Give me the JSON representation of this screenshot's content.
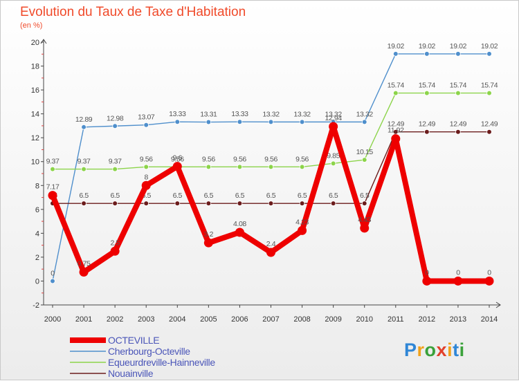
{
  "chart_data": {
    "type": "line",
    "title": "Evolution du Taux de Taxe d'Habitation",
    "subtitle": "(en %)",
    "x": [
      "2000",
      "2001",
      "2002",
      "2003",
      "2004",
      "2005",
      "2006",
      "2007",
      "2008",
      "2009",
      "2010",
      "2011",
      "2012",
      "2013",
      "2014"
    ],
    "ylim": [
      -2,
      20
    ],
    "yticks": [
      -2,
      0,
      2,
      4,
      6,
      8,
      10,
      12,
      14,
      16,
      18,
      20
    ],
    "grid": false,
    "legend": "bottom-left",
    "series": [
      {
        "name": "Cherbourg-Octeville",
        "color": "#4f8fcc",
        "values": [
          0,
          12.89,
          12.98,
          13.07,
          13.33,
          13.31,
          13.33,
          13.32,
          13.32,
          13.32,
          13.32,
          19.02,
          19.02,
          19.02,
          19.02
        ],
        "labels": [
          "0",
          "12.89",
          "12.98",
          "13.07",
          "13.33",
          "13.31",
          "13.33",
          "13.32",
          "13.32",
          "13.32",
          "13.32",
          "19.02",
          "19.02",
          "19.02",
          "19.02"
        ]
      },
      {
        "name": "Equeurdreville-Hainneville",
        "color": "#8cd44a",
        "values": [
          9.37,
          9.37,
          9.37,
          9.56,
          9.56,
          9.56,
          9.56,
          9.56,
          9.56,
          9.85,
          10.15,
          15.74,
          15.74,
          15.74,
          15.74
        ],
        "labels": [
          "9.37",
          "9.37",
          "9.37",
          "9.56",
          "9.56",
          "9.56",
          "9.56",
          "9.56",
          "9.56",
          "9.85",
          "10.15",
          "15.74",
          "15.74",
          "15.74",
          "15.74"
        ]
      },
      {
        "name": "Nouainville",
        "color": "#6b1c1c",
        "values": [
          6.5,
          6.5,
          6.5,
          6.5,
          6.5,
          6.5,
          6.5,
          6.5,
          6.5,
          6.5,
          6.5,
          12.49,
          12.49,
          12.49,
          12.49
        ],
        "labels": [
          "6.5",
          "6.5",
          "6.5",
          "6.5",
          "6.5",
          "6.5",
          "6.5",
          "6.5",
          "6.5",
          "6.5",
          "6.5",
          "12.49",
          "12.49",
          "12.49",
          "12.49"
        ]
      },
      {
        "name": "OCTEVILLE",
        "color": "#ee0000",
        "values": [
          7.17,
          0.75,
          2.5,
          8,
          9.6,
          3.2,
          4.08,
          2.4,
          4.23,
          12.94,
          4.43,
          11.92,
          0,
          0,
          0
        ],
        "labels": [
          "7.17",
          "0.75",
          "2.5",
          "8",
          "9.6",
          "3.2",
          "4.08",
          "2.4",
          "4.23",
          "12.94",
          "4.43",
          "11.92",
          "0",
          "0",
          "0"
        ]
      }
    ],
    "legend_order": [
      "OCTEVILLE",
      "Cherbourg-Octeville",
      "Equeurdreville-Hainneville",
      "Nouainville"
    ]
  },
  "brand": {
    "letters": [
      "P",
      "r",
      "o",
      "x",
      "i",
      "t",
      "i"
    ],
    "colors": [
      "#2f86d6",
      "#f2a21b",
      "#3aa13a",
      "#e2402b",
      "#f2a21b",
      "#2f86d6",
      "#3aa13a"
    ]
  }
}
